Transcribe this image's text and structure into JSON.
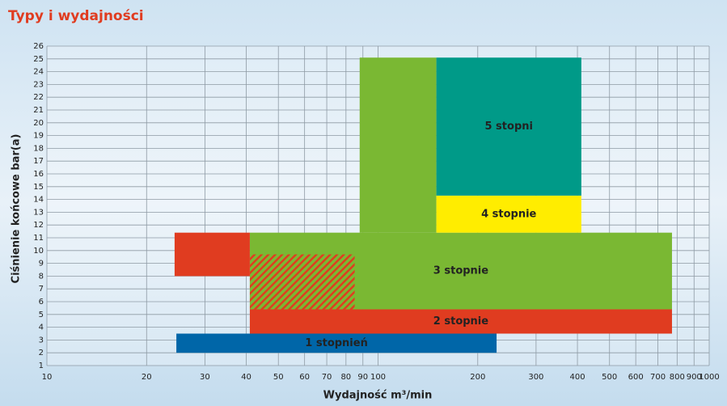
{
  "chart_data": {
    "type": "region",
    "title": "Typy i wydajności",
    "x_label": "Wydajność m³/min",
    "y_label": "Ciśnienie końcowe bar(a)",
    "x_log": true,
    "grid": true,
    "xlim": [
      10,
      1000
    ],
    "ylim": [
      1,
      26
    ],
    "xticks": [
      10,
      20,
      30,
      40,
      50,
      60,
      70,
      80,
      90,
      100,
      200,
      300,
      400,
      500,
      600,
      700,
      800,
      900,
      1000
    ],
    "yticks": [
      1,
      2,
      3,
      4,
      5,
      6,
      7,
      8,
      9,
      10,
      11,
      12,
      13,
      14,
      15,
      16,
      17,
      18,
      19,
      20,
      21,
      22,
      23,
      24,
      25,
      26
    ],
    "regions": [
      {
        "x": [
          88,
          150
        ],
        "y": [
          11.4,
          25.1
        ],
        "color": "#7ab833"
      },
      {
        "label": "3 stopnie",
        "x": [
          41,
          772
        ],
        "y": [
          5.4,
          11.4
        ],
        "color": "#7ab833"
      },
      {
        "x": [
          41,
          85
        ],
        "y": [
          5.4,
          9.7
        ],
        "color": "#7ab833",
        "hatch_color": "#e03c20"
      },
      {
        "x": [
          24.3,
          41
        ],
        "y": [
          8,
          11.4
        ],
        "color": "#e03c20"
      },
      {
        "label": "2 stopnie",
        "x": [
          41,
          772
        ],
        "y": [
          3.5,
          5.4
        ],
        "color": "#e03c20"
      },
      {
        "label": "1 stopnień",
        "x": [
          24.6,
          228
        ],
        "y": [
          2,
          3.5
        ],
        "color": "#0066a8"
      },
      {
        "label": "4 stopnie",
        "x": [
          150,
          411
        ],
        "y": [
          11.4,
          14.3
        ],
        "color": "#ffed00"
      },
      {
        "label": "5 stopni",
        "x": [
          150,
          411
        ],
        "y": [
          14.3,
          25.1
        ],
        "color": "#009a88"
      }
    ]
  }
}
